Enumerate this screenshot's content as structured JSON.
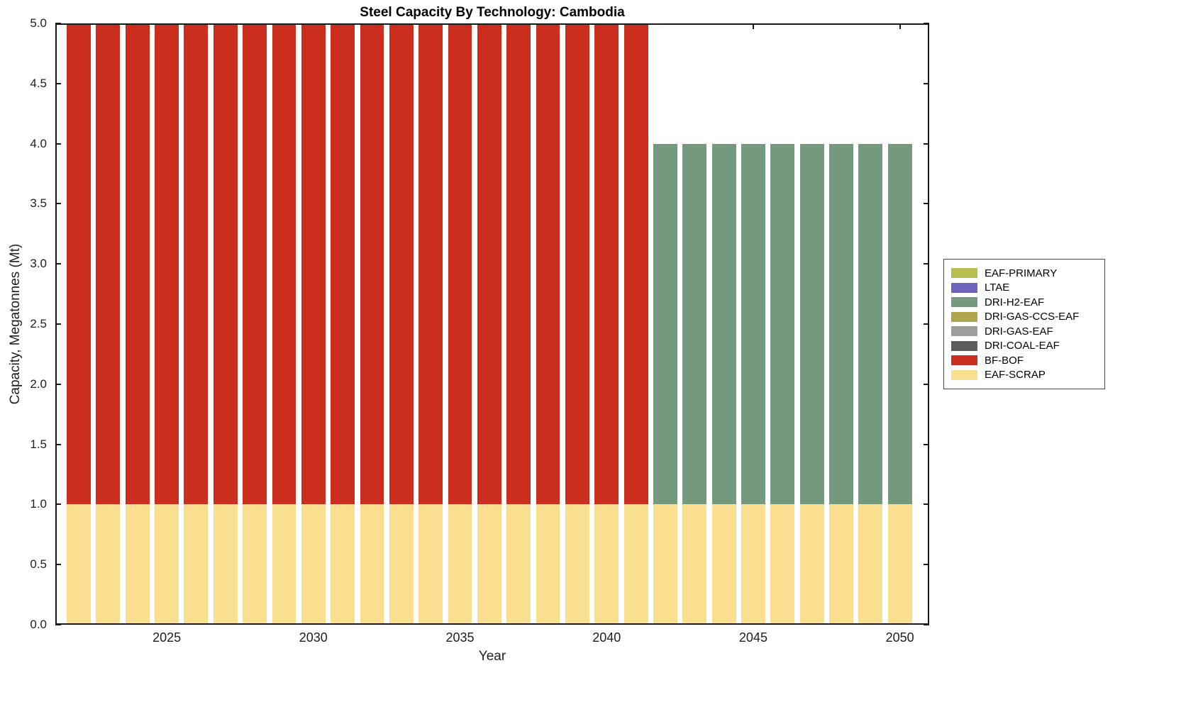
{
  "figure": {
    "background": "#FFFFFF",
    "axis_color": "#1A1A1A",
    "text_color": "#1F1F1F"
  },
  "chart_data": {
    "type": "bar",
    "stacked": true,
    "title": "Steel Capacity By Technology: Cambodia",
    "xlabel": "Year",
    "ylabel": "Capacity, Megatonnes (Mt)",
    "x": [
      2022,
      2023,
      2024,
      2025,
      2026,
      2027,
      2028,
      2029,
      2030,
      2031,
      2032,
      2033,
      2034,
      2035,
      2036,
      2037,
      2038,
      2039,
      2040,
      2041,
      2042,
      2043,
      2044,
      2045,
      2046,
      2047,
      2048,
      2049,
      2050
    ],
    "series": [
      {
        "name": "EAF-SCRAP",
        "color": "#FADF91",
        "values": [
          1,
          1,
          1,
          1,
          1,
          1,
          1,
          1,
          1,
          1,
          1,
          1,
          1,
          1,
          1,
          1,
          1,
          1,
          1,
          1,
          1,
          1,
          1,
          1,
          1,
          1,
          1,
          1,
          1
        ]
      },
      {
        "name": "BF-BOF",
        "color": "#CB2D1F",
        "values": [
          4,
          4,
          4,
          4,
          4,
          4,
          4,
          4,
          4,
          4,
          4,
          4,
          4,
          4,
          4,
          4,
          4,
          4,
          4,
          4,
          0,
          0,
          0,
          0,
          0,
          0,
          0,
          0,
          0
        ]
      },
      {
        "name": "DRI-H2-EAF",
        "color": "#75997F",
        "values": [
          0,
          0,
          0,
          0,
          0,
          0,
          0,
          0,
          0,
          0,
          0,
          0,
          0,
          0,
          0,
          0,
          0,
          0,
          0,
          0,
          3,
          3,
          3,
          3,
          3,
          3,
          3,
          3,
          3
        ]
      }
    ],
    "xlim": [
      2021.2,
      2051.0
    ],
    "ylim": [
      0,
      5
    ],
    "bar_width": 0.82,
    "xtick_values": [
      2025,
      2030,
      2035,
      2040,
      2045,
      2050
    ],
    "xtick_labels": [
      "2025",
      "2030",
      "2035",
      "2040",
      "2045",
      "2050"
    ],
    "ytick_values": [
      0,
      0.5,
      1,
      1.5,
      2,
      2.5,
      3,
      3.5,
      4,
      4.5,
      5
    ],
    "ytick_labels": [
      "0.0",
      "0.5",
      "1.0",
      "1.5",
      "2.0",
      "2.5",
      "3.0",
      "3.5",
      "4.0",
      "4.5",
      "5.0"
    ],
    "grid": false,
    "legend_position": "right-outside",
    "legend": [
      {
        "label": "EAF-PRIMARY",
        "color": "#B9BE4F"
      },
      {
        "label": "LTAE",
        "color": "#6D63BC"
      },
      {
        "label": "DRI-H2-EAF",
        "color": "#75997F"
      },
      {
        "label": "DRI-GAS-CCS-EAF",
        "color": "#AEA54E"
      },
      {
        "label": "DRI-GAS-EAF",
        "color": "#9D9D9D"
      },
      {
        "label": "DRI-COAL-EAF",
        "color": "#5E5E5E"
      },
      {
        "label": "BF-BOF",
        "color": "#CB2D1F"
      },
      {
        "label": "EAF-SCRAP",
        "color": "#FADF91"
      }
    ]
  }
}
